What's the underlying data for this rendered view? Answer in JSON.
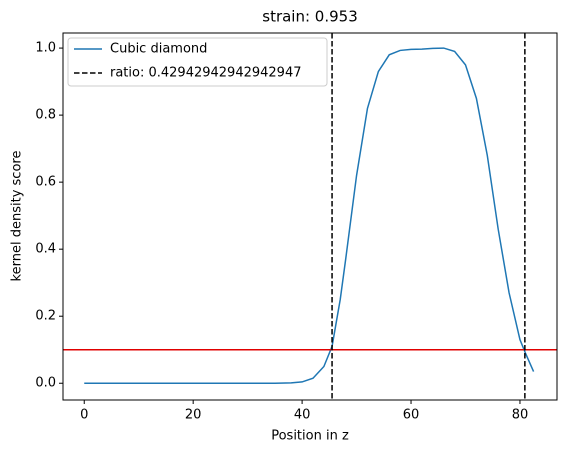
{
  "chart_data": {
    "type": "line",
    "title": "strain: 0.953",
    "xlabel": "Position in z",
    "ylabel": "kernel density score",
    "series": [
      {
        "name": "Cubic diamond",
        "color": "#1f77b4",
        "x": [
          0,
          5,
          10,
          15,
          20,
          25,
          30,
          35,
          38,
          40,
          42,
          44,
          45.5,
          47,
          48,
          50,
          52,
          54,
          56,
          58,
          60,
          62,
          64,
          66,
          68,
          70,
          72,
          74,
          76,
          78,
          80,
          81,
          82.5
        ],
        "values": [
          0,
          0,
          0,
          0,
          0,
          0,
          0,
          0,
          0.001,
          0.004,
          0.015,
          0.05,
          0.11,
          0.25,
          0.37,
          0.62,
          0.82,
          0.93,
          0.98,
          0.993,
          0.996,
          0.997,
          0.999,
          1.0,
          0.99,
          0.95,
          0.85,
          0.68,
          0.46,
          0.27,
          0.13,
          0.09,
          0.035
        ]
      }
    ],
    "vlines": {
      "name": "ratio: 0.42942942942942947",
      "color": "#000000",
      "values": [
        45.5,
        80.9
      ]
    },
    "hline": {
      "value": 0.1,
      "color": "#e00000"
    },
    "xlim": [
      -3.9,
      86.8
    ],
    "ylim": [
      -0.05,
      1.045
    ],
    "xticks": [
      0,
      20,
      40,
      60,
      80
    ],
    "yticks": [
      {
        "value": 0,
        "label": "0.0"
      },
      {
        "value": 0.2,
        "label": "0.2"
      },
      {
        "value": 0.4,
        "label": "0.4"
      },
      {
        "value": 0.6,
        "label": "0.6"
      },
      {
        "value": 0.8,
        "label": "0.8"
      },
      {
        "value": 1.0,
        "label": "1.0"
      }
    ],
    "legend": "upper left"
  }
}
